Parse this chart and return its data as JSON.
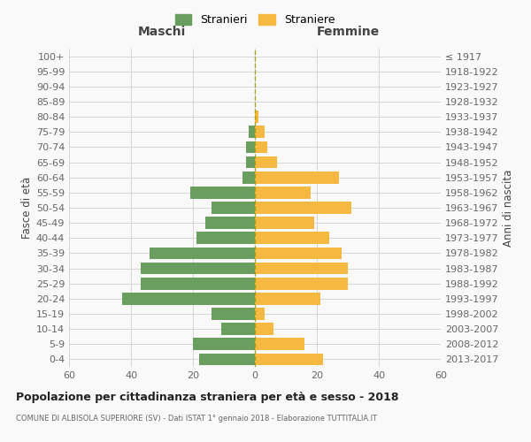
{
  "age_groups": [
    "0-4",
    "5-9",
    "10-14",
    "15-19",
    "20-24",
    "25-29",
    "30-34",
    "35-39",
    "40-44",
    "45-49",
    "50-54",
    "55-59",
    "60-64",
    "65-69",
    "70-74",
    "75-79",
    "80-84",
    "85-89",
    "90-94",
    "95-99",
    "100+"
  ],
  "birth_years": [
    "2013-2017",
    "2008-2012",
    "2003-2007",
    "1998-2002",
    "1993-1997",
    "1988-1992",
    "1983-1987",
    "1978-1982",
    "1973-1977",
    "1968-1972",
    "1963-1967",
    "1958-1962",
    "1953-1957",
    "1948-1952",
    "1943-1947",
    "1938-1942",
    "1933-1937",
    "1928-1932",
    "1923-1927",
    "1918-1922",
    "≤ 1917"
  ],
  "maschi": [
    18,
    20,
    11,
    14,
    43,
    37,
    37,
    34,
    19,
    16,
    14,
    21,
    4,
    3,
    3,
    2,
    0,
    0,
    0,
    0,
    0
  ],
  "femmine": [
    22,
    16,
    6,
    3,
    21,
    30,
    30,
    28,
    24,
    19,
    31,
    18,
    27,
    7,
    4,
    3,
    1,
    0,
    0,
    0,
    0
  ],
  "color_maschi": "#6a9e5e",
  "color_femmine": "#f5b942",
  "title": "Popolazione per cittadinanza straniera per età e sesso - 2018",
  "subtitle": "COMUNE DI ALBISOLA SUPERIORE (SV) - Dati ISTAT 1° gennaio 2018 - Elaborazione TUTTITALIA.IT",
  "header_left": "Maschi",
  "header_right": "Femmine",
  "ylabel_left": "Fasce di età",
  "ylabel_right": "Anni di nascita",
  "legend_maschi": "Stranieri",
  "legend_femmine": "Straniere",
  "xlim": 60,
  "background_color": "#f9f9f9",
  "grid_color": "#d0d0d0",
  "bar_height": 0.8
}
